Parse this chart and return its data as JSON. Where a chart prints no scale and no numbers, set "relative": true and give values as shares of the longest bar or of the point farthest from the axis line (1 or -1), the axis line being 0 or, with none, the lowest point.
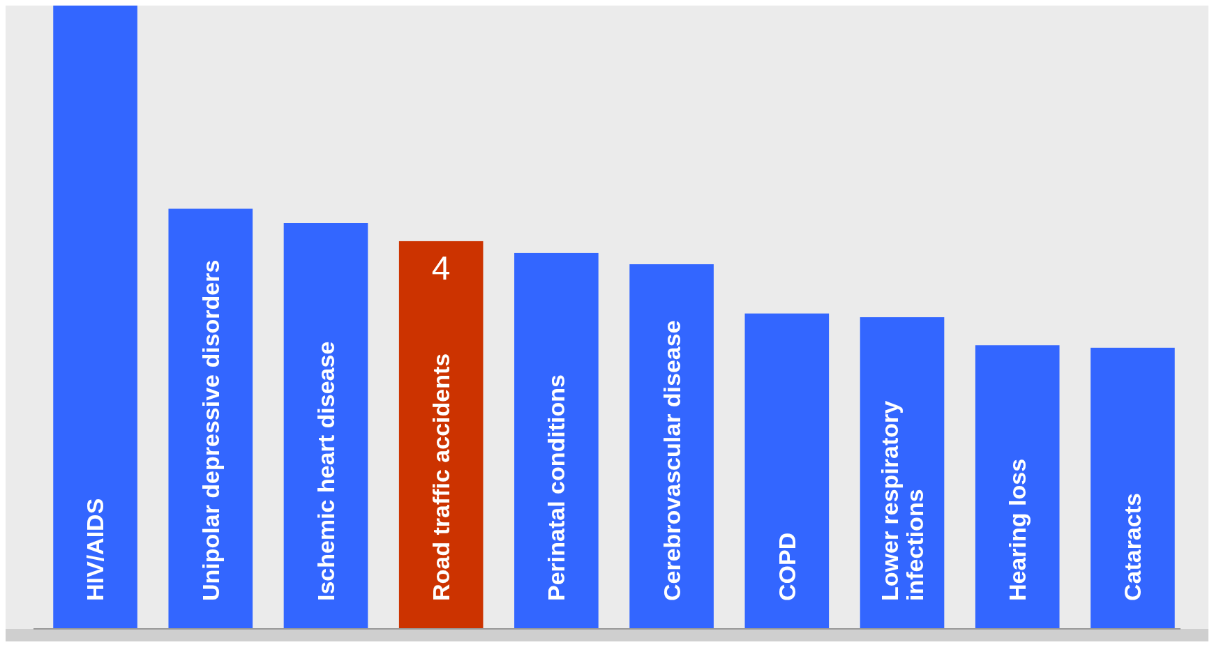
{
  "chart_data": {
    "type": "bar",
    "relative": true,
    "categories": [
      "HIV/AIDS",
      "Unipolar depressive disorders",
      "Ischemic heart disease",
      "Road traffic accidents",
      "Perinatal conditions",
      "Cerebrovascular disease",
      "COPD",
      "Lower respiratory infections",
      "Hearing loss",
      "Cataracts"
    ],
    "values": [
      1,
      0.674,
      0.651,
      0.622,
      0.603,
      0.585,
      0.506,
      0.5,
      0.455,
      0.451
    ],
    "colors": [
      "#3366ff",
      "#3366ff",
      "#3366ff",
      "#cc3300",
      "#3366ff",
      "#3366ff",
      "#3366ff",
      "#3366ff",
      "#3366ff",
      "#3366ff"
    ],
    "annotations": [
      "4"
    ]
  }
}
